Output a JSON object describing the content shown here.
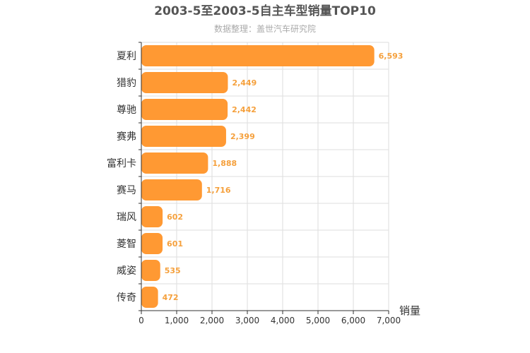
{
  "chart_data": {
    "type": "bar",
    "orientation": "horizontal",
    "title": "2003-5至2003-5自主车型销量TOP10",
    "subtitle": "数据整理：盖世汽车研究院",
    "xlabel": "销量",
    "ylabel": "",
    "xlim": [
      0,
      7000
    ],
    "xticks": [
      "0",
      "1,000",
      "2,000",
      "3,000",
      "4,000",
      "5,000",
      "6,000",
      "7,000"
    ],
    "xtick_values": [
      0,
      1000,
      2000,
      3000,
      4000,
      5000,
      6000,
      7000
    ],
    "categories": [
      "夏利",
      "猎豹",
      "尊驰",
      "赛弗",
      "富利卡",
      "赛马",
      "瑞风",
      "菱智",
      "威姿",
      "传奇"
    ],
    "values": [
      6593,
      2449,
      2442,
      2399,
      1888,
      1716,
      602,
      601,
      535,
      472
    ],
    "value_labels": [
      "6,593",
      "2,449",
      "2,442",
      "2,399",
      "1,888",
      "1,716",
      "602",
      "601",
      "535",
      "472"
    ],
    "bar_color": "#ff9933",
    "label_color": "#f5a03c",
    "grid": true
  }
}
